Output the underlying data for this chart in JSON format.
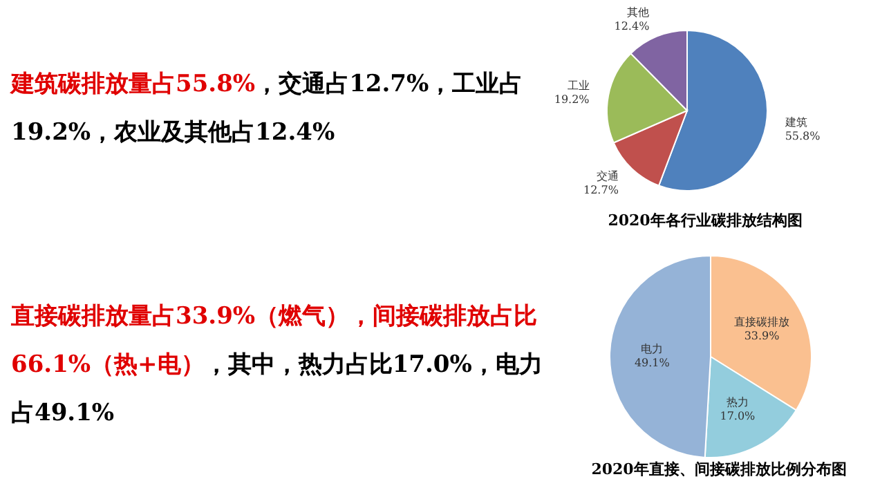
{
  "chart_data": [
    {
      "type": "pie",
      "title": "2020年各行业碳排放结构图",
      "annotations": [
        "建筑碳排放量占55.8%",
        "，交通占12.7%，工业占19.2%，农业及其他占12.4%"
      ],
      "categories": [
        "建筑",
        "交通",
        "工业",
        "其他"
      ],
      "values": [
        55.8,
        12.7,
        19.2,
        12.4
      ],
      "colors": [
        "#4f81bd",
        "#c0504d",
        "#9bbb59",
        "#8064a2"
      ],
      "value_labels": [
        "55.8%",
        "12.7%",
        "19.2%",
        "12.4%"
      ]
    },
    {
      "type": "pie",
      "title": "2020年直接、间接碳排放比例分布图",
      "annotations": [
        "直接碳排放量占33.9%（燃气），间接碳排放占比66.1%（热+电）",
        "，其中，热力占比17.0%，电力占49.1%"
      ],
      "categories": [
        "直接碳排放",
        "热力",
        "电力"
      ],
      "values": [
        33.9,
        17.0,
        49.1
      ],
      "colors": [
        "#fac090",
        "#93cddd",
        "#95b3d7"
      ],
      "value_labels": [
        "33.9%",
        "17.0%",
        "49.1%"
      ]
    }
  ]
}
